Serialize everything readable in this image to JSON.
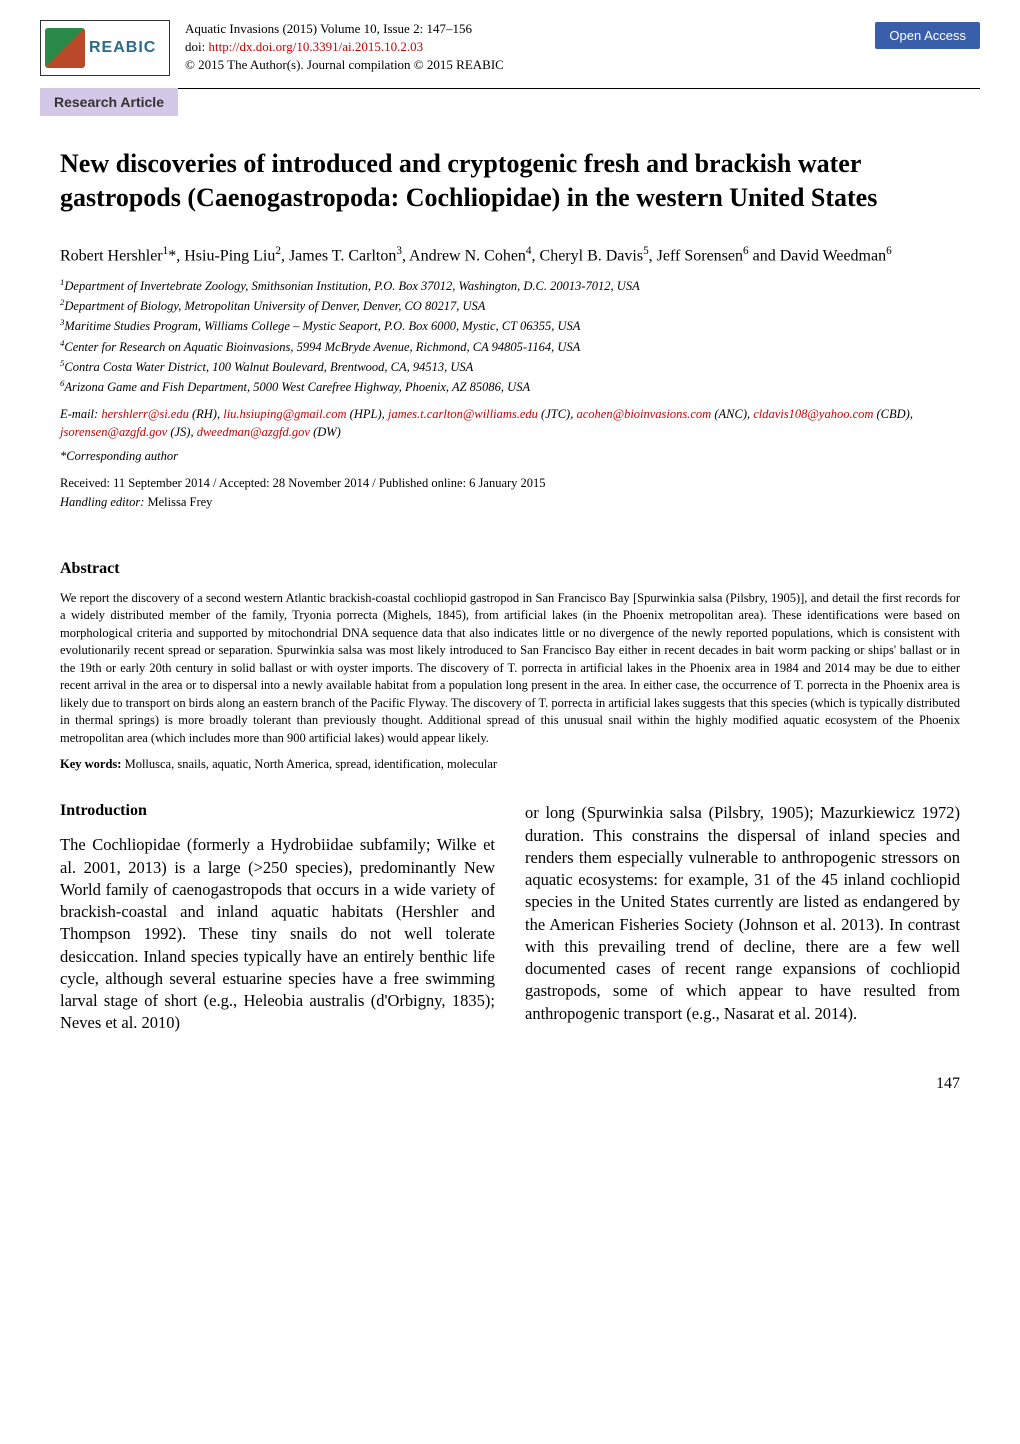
{
  "header": {
    "logo_text": "REABIC",
    "journal_line": "Aquatic Invasions (2015) Volume 10, Issue 2: 147–156",
    "doi_prefix": "doi:  ",
    "doi_link": "http://dx.doi.org/10.3391/ai.2015.10.2.03",
    "copyright": "© 2015 The Author(s). Journal compilation © 2015 REABIC",
    "open_access": "Open Access",
    "article_type": "Research Article"
  },
  "title": "New discoveries of introduced and cryptogenic fresh and brackish water gastropods (Caenogastropoda: Cochliopidae) in the western United States",
  "authors_html": "Robert Hershler<sup>1</sup>*, Hsiu-Ping Liu<sup>2</sup>, James T. Carlton<sup>3</sup>, Andrew N. Cohen<sup>4</sup>, Cheryl B. Davis<sup>5</sup>, Jeff Sorensen<sup>6</sup> and David Weedman<sup>6</sup>",
  "affiliations": [
    "1Department of Invertebrate Zoology, Smithsonian Institution, P.O. Box 37012, Washington, D.C. 20013-7012, USA",
    "2Department of Biology, Metropolitan University of Denver, Denver, CO 80217, USA",
    "3Maritime Studies Program, Williams College – Mystic Seaport, P.O. Box 6000, Mystic, CT 06355, USA",
    "4Center for Research on Aquatic Bioinvasions, 5994 McBryde Avenue, Richmond, CA 94805-1164, USA",
    "5Contra Costa Water District, 100 Walnut Boulevard, Brentwood, CA, 94513, USA",
    "6Arizona Game and Fish Department, 5000 West Carefree Highway, Phoenix, AZ 85086, USA"
  ],
  "emails": {
    "prefix": "E-mail: ",
    "list": [
      {
        "addr": "hershlerr@si.edu",
        "who": " (RH), "
      },
      {
        "addr": "liu.hsiuping@gmail.com",
        "who": " (HPL), "
      },
      {
        "addr": "james.t.carlton@williams.edu",
        "who": " (JTC), "
      },
      {
        "addr": "acohen@bioinvasions.com",
        "who": " (ANC), "
      },
      {
        "addr": "cldavis108@yahoo.com",
        "who": " (CBD), "
      },
      {
        "addr": "jsorensen@azgfd.gov",
        "who": " (JS), "
      },
      {
        "addr": "dweedman@azgfd.gov",
        "who": " (DW)"
      }
    ]
  },
  "corresponding": "*Corresponding author",
  "dates": "Received: 11 September 2014 / Accepted: 28 November 2014 / Published online: 6 January 2015",
  "handling_editor_label": "Handling editor: ",
  "handling_editor_name": "Melissa Frey",
  "abstract_heading": "Abstract",
  "abstract_text": "We report the discovery of a second western Atlantic brackish-coastal cochliopid gastropod in San Francisco Bay [Spurwinkia salsa (Pilsbry, 1905)], and detail the first records for a widely distributed member of the family, Tryonia porrecta (Mighels, 1845), from artificial lakes (in the Phoenix metropolitan area). These identifications were based on morphological criteria and supported by mitochondrial DNA sequence data that also indicates little or no divergence of the newly reported populations, which is consistent with evolutionarily recent spread or separation. Spurwinkia salsa was most likely introduced to San Francisco Bay either in recent decades in bait worm packing or ships' ballast or in the 19th or early 20th century in solid ballast or with oyster imports. The discovery of T. porrecta in artificial lakes in the Phoenix area in 1984 and 2014 may be due to either recent arrival in the area or to dispersal into a newly available habitat from a population long present in the area. In either case, the occurrence of T. porrecta in the Phoenix area is likely due to transport on birds along an eastern branch of the Pacific Flyway. The discovery of T. porrecta in artificial lakes suggests that this species (which is typically distributed in thermal springs) is more broadly tolerant than previously thought. Additional spread of this unusual snail within the highly modified aquatic ecosystem of the Phoenix metropolitan area (which includes more than 900 artificial lakes) would appear likely.",
  "keywords_label": "Key words: ",
  "keywords": "Mollusca, snails, aquatic, North America, spread, identification, molecular",
  "intro_heading": "Introduction",
  "body_col1": "The Cochliopidae (formerly a Hydrobiidae subfamily; Wilke et al. 2001, 2013) is a large (>250 species), predominantly New World family of caenogastropods that occurs in a wide variety of brackish-coastal and inland aquatic habitats (Hershler and Thompson 1992). These tiny snails do not well tolerate desiccation. Inland species typically have an entirely benthic life cycle, although several estuarine species have a free swimming larval stage of short (e.g., Heleobia australis (d'Orbigny, 1835); Neves et al. 2010)",
  "body_col2": "or long (Spurwinkia salsa (Pilsbry, 1905); Mazurkiewicz 1972) duration. This constrains the dispersal of inland species and renders them especially vulnerable to anthropogenic stressors on aquatic ecosystems: for example, 31 of the 45 inland cochliopid species in the United States currently are listed as endangered by the American Fisheries Society (Johnson et al. 2013). In contrast with this prevailing trend of decline, there are a few well documented cases of recent range expansions of cochliopid gastropods, some of which appear to have resulted from anthropogenic transport (e.g., Nasarat et al. 2014).",
  "page_number": "147"
}
